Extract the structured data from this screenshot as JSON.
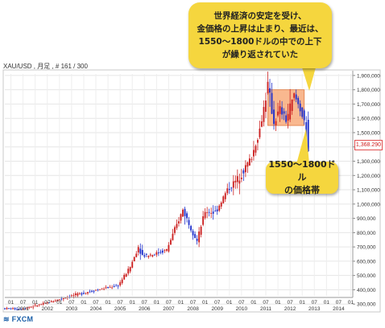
{
  "symbol_label": "XAU/USD , 月足 , # 161 / 300",
  "current_price": "1,368.290",
  "callouts": {
    "top": [
      "世界経済の安定を受け、",
      "金価格の上昇は止まり、最近は、",
      "1550～1800ドルの中での上下",
      "が繰り返されていた"
    ],
    "band": [
      "1550～1800ドル",
      "の価格帯"
    ]
  },
  "logo": "FXCM",
  "colors": {
    "up": "#cc2222",
    "down": "#2233cc",
    "band_fill": "#f7a06a",
    "callout": "#f5d63e"
  },
  "chart_data": {
    "type": "candlestick",
    "title": "",
    "ylim": [
      200000,
      1950000
    ],
    "y_ticks": [
      "300,000",
      "400,000",
      "500,000",
      "600,000",
      "700,000",
      "800,000",
      "900,000",
      "1,000,000",
      "1,100,000",
      "1,200,000",
      "1,300,000",
      "1,400,000",
      "1,500,000",
      "1,600,000",
      "1,700,000",
      "1,800,000",
      "1,900,000"
    ],
    "y_tick_values": [
      300000,
      400000,
      500000,
      600000,
      700000,
      800000,
      900000,
      1000000,
      1100000,
      1200000,
      1300000,
      1400000,
      1500000,
      1600000,
      1700000,
      1800000,
      1900000
    ],
    "x_month_labels": [
      "01",
      "07",
      "01",
      "07",
      "01",
      "07",
      "01",
      "07",
      "01",
      "07",
      "01",
      "07",
      "01",
      "07",
      "01",
      "07",
      "01",
      "07",
      "01",
      "07",
      "01",
      "07",
      "01",
      "07",
      "01",
      "07",
      "01",
      "07",
      "01"
    ],
    "x_month_dates": [
      "2001-01",
      "2001-07",
      "2002-01",
      "2002-07",
      "2003-01",
      "2003-07",
      "2004-01",
      "2004-07",
      "2005-01",
      "2005-07",
      "2006-01",
      "2006-07",
      "2007-01",
      "2007-07",
      "2008-01",
      "2008-07",
      "2009-01",
      "2009-07",
      "2010-01",
      "2010-07",
      "2011-01",
      "2011-07",
      "2012-01",
      "2012-07",
      "2013-01",
      "2013-07",
      "2014-01",
      "2014-07",
      "2015-01"
    ],
    "x_year_labels": [
      "2001",
      "2002",
      "2003",
      "2004",
      "2005",
      "2006",
      "2007",
      "2008",
      "2009",
      "2010",
      "2011",
      "2012",
      "2013",
      "2014"
    ],
    "x_year_dates": [
      "2001-07",
      "2002-07",
      "2003-07",
      "2004-07",
      "2005-07",
      "2006-07",
      "2007-07",
      "2008-07",
      "2009-07",
      "2010-07",
      "2011-07",
      "2012-07",
      "2013-07",
      "2014-07"
    ],
    "x_range": [
      "2000-10",
      "2015-02"
    ],
    "highlight_band": {
      "y": [
        1550000,
        1800000
      ],
      "x": [
        "2011-08",
        "2013-02"
      ]
    },
    "annual_path": {
      "dates": [
        "2000-10",
        "2001-07",
        "2002-07",
        "2003-07",
        "2004-07",
        "2005-07",
        "2006-01",
        "2006-05",
        "2006-07",
        "2007-01",
        "2007-07",
        "2008-03",
        "2008-10",
        "2009-02",
        "2009-07",
        "2010-01",
        "2010-07",
        "2011-01",
        "2011-05",
        "2011-09",
        "2011-12",
        "2012-03",
        "2012-06",
        "2012-10",
        "2013-01",
        "2013-03",
        "2013-04"
      ],
      "values": [
        270000,
        265000,
        305000,
        355000,
        395000,
        430000,
        560000,
        700000,
        640000,
        650000,
        680000,
        960000,
        740000,
        950000,
        940000,
        1100000,
        1190000,
        1330000,
        1520000,
        1830000,
        1570000,
        1660000,
        1590000,
        1760000,
        1670000,
        1590000,
        1370000
      ]
    },
    "grid": true,
    "y_axis_side": "right"
  }
}
